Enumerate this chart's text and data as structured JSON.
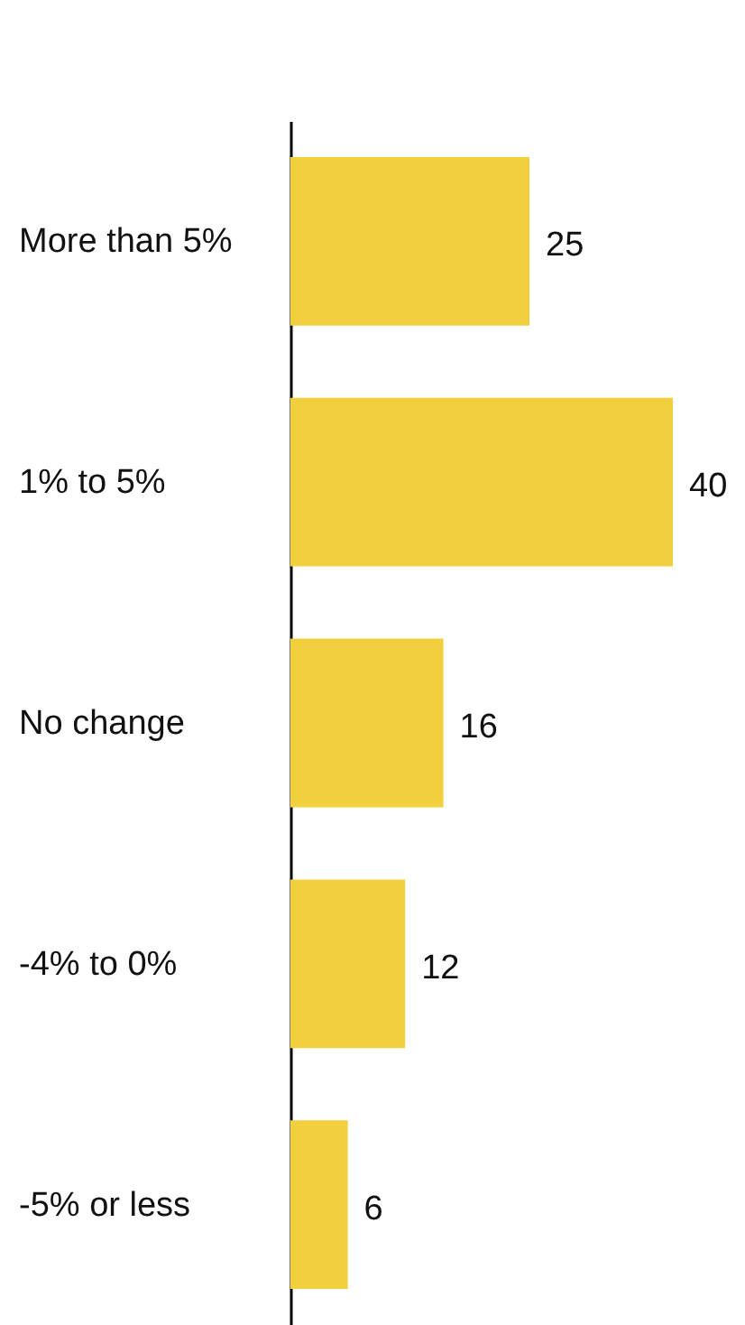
{
  "chart_data": {
    "type": "bar",
    "orientation": "horizontal",
    "categories": [
      "More than 5%",
      "1% to 5%",
      "No change",
      "-4% to 0%",
      "-5% or less"
    ],
    "values": [
      25,
      40,
      16,
      12,
      6
    ],
    "color": "#f2cf3c",
    "data_labels": true
  }
}
